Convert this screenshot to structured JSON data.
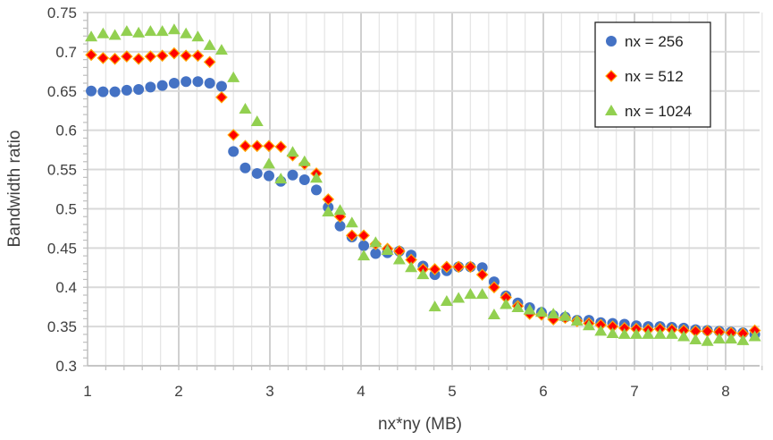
{
  "chart_data": {
    "type": "scatter",
    "title": "",
    "xlabel": "nx*ny (MB)",
    "ylabel": "Bandwidth ratio",
    "xlim": [
      1,
      8.45
    ],
    "ylim": [
      0.3,
      0.75
    ],
    "xticks": [
      "1",
      "2",
      "3",
      "4",
      "5",
      "6",
      "7",
      "8"
    ],
    "yticks": [
      "0.3",
      "0.35",
      "0.4",
      "0.45",
      "0.5",
      "0.55",
      "0.6",
      "0.65",
      "0.7",
      "0.75"
    ],
    "grid": true,
    "legend_position": "top-right",
    "x_start": 1.04,
    "x_step": 0.13,
    "series": [
      {
        "name": "nx = 256",
        "marker": "circle",
        "color": "#4472C4",
        "values": [
          0.65,
          0.649,
          0.649,
          0.651,
          0.652,
          0.655,
          0.657,
          0.66,
          0.662,
          0.662,
          0.66,
          0.656,
          0.573,
          0.552,
          0.545,
          0.542,
          0.535,
          0.543,
          0.537,
          0.524,
          0.502,
          0.478,
          0.464,
          0.453,
          0.443,
          0.444,
          0.446,
          0.441,
          0.427,
          0.416,
          0.421,
          0.426,
          0.426,
          0.425,
          0.407,
          0.389,
          0.38,
          0.374,
          0.368,
          0.364,
          0.362,
          0.358,
          0.358,
          0.355,
          0.354,
          0.353,
          0.351,
          0.35,
          0.35,
          0.349,
          0.348,
          0.346,
          0.345,
          0.344,
          0.343,
          0.342,
          0.34
        ]
      },
      {
        "name": "nx = 512",
        "marker": "diamond",
        "color": "#FF0000",
        "values": [
          0.696,
          0.692,
          0.691,
          0.694,
          0.691,
          0.694,
          0.695,
          0.698,
          0.695,
          0.695,
          0.687,
          0.642,
          0.594,
          0.58,
          0.58,
          0.58,
          0.579,
          0.568,
          0.557,
          0.545,
          0.512,
          0.49,
          0.466,
          0.466,
          0.455,
          0.449,
          0.446,
          0.435,
          0.423,
          0.423,
          0.426,
          0.426,
          0.426,
          0.416,
          0.4,
          0.387,
          0.376,
          0.366,
          0.365,
          0.359,
          0.361,
          0.357,
          0.354,
          0.352,
          0.35,
          0.348,
          0.347,
          0.346,
          0.347,
          0.346,
          0.345,
          0.344,
          0.344,
          0.343,
          0.342,
          0.341,
          0.345
        ]
      },
      {
        "name": "nx = 1024",
        "marker": "triangle",
        "color": "#92D050",
        "values": [
          0.719,
          0.723,
          0.721,
          0.726,
          0.724,
          0.726,
          0.726,
          0.728,
          0.723,
          0.719,
          0.708,
          0.702,
          0.667,
          0.627,
          0.611,
          0.557,
          0.538,
          0.572,
          0.56,
          0.539,
          0.496,
          0.498,
          0.482,
          0.44,
          0.457,
          0.447,
          0.435,
          0.425,
          0.416,
          0.375,
          0.382,
          0.386,
          0.391,
          0.391,
          0.365,
          0.378,
          0.374,
          0.371,
          0.368,
          0.366,
          0.363,
          0.357,
          0.351,
          0.344,
          0.341,
          0.34,
          0.34,
          0.34,
          0.34,
          0.34,
          0.337,
          0.333,
          0.331,
          0.334,
          0.334,
          0.332,
          0.337
        ]
      }
    ]
  }
}
